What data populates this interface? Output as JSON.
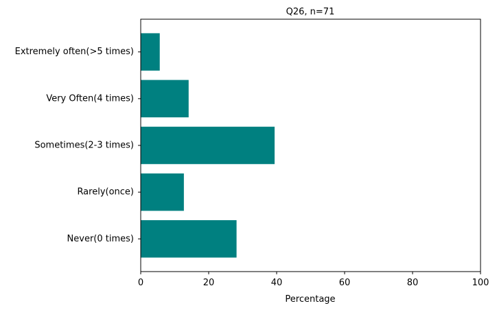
{
  "chart_data": {
    "type": "bar",
    "orientation": "horizontal",
    "title": "Q26, n=71",
    "xlabel": "Percentage",
    "ylabel": "",
    "categories": [
      "Never(0 times)",
      "Rarely(once)",
      "Sometimes(2-3 times)",
      "Very Often(4 times)",
      "Extremely often(>5 times)"
    ],
    "values": [
      28.2,
      12.7,
      39.4,
      14.1,
      5.6
    ],
    "xlim": [
      0,
      100
    ],
    "xticks": [
      "0",
      "20",
      "40",
      "60",
      "80",
      "100"
    ],
    "grid": false,
    "bar_color": "#008080"
  }
}
